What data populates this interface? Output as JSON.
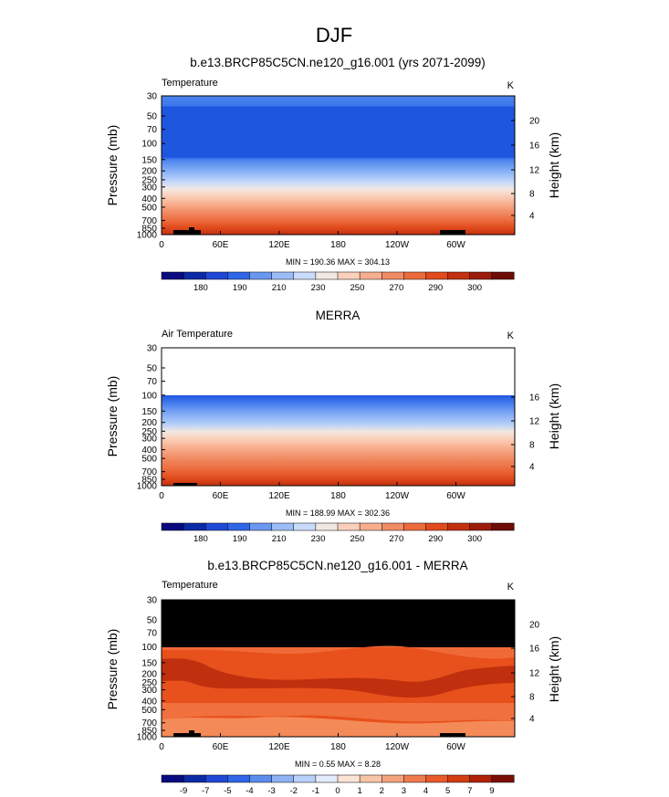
{
  "figure": {
    "title": "DJF"
  },
  "chart_data": [
    {
      "type": "heatmap",
      "title": "b.e13.BRCP85C5CN.ne120_g16.001 (yrs 2071-2099)",
      "left_label": "Temperature",
      "right_label": "K",
      "ylabel": "Pressure (mb)",
      "ylabel_right": "Height (km)",
      "stats": "MIN = 190.36  MAX = 304.13",
      "x_ticks": [
        "0",
        "60E",
        "120E",
        "180",
        "120W",
        "60W"
      ],
      "y_ticks": [
        "30",
        "50",
        "70",
        "100",
        "150",
        "200",
        "250",
        "300",
        "400",
        "500",
        "700",
        "850",
        "1000"
      ],
      "height_ticks": [
        "4",
        "8",
        "12",
        "16",
        "20"
      ],
      "ylim": [
        1000,
        30
      ],
      "colorbar": {
        "colors": [
          "#0a0a80",
          "#0d2aa6",
          "#1f48d6",
          "#2f66e8",
          "#6a98f1",
          "#9cbcf7",
          "#c9dbfb",
          "#f1e8e2",
          "#fbd0bb",
          "#f7ae8e",
          "#f18b63",
          "#ec6a3c",
          "#e04a1c",
          "#c23010",
          "#9b1c0a",
          "#6e0c06"
        ],
        "labels": [
          "180",
          "190",
          "210",
          "230",
          "250",
          "270",
          "290",
          "300"
        ]
      }
    },
    {
      "type": "heatmap",
      "title": "MERRA",
      "left_label": "Air Temperature",
      "right_label": "K",
      "ylabel": "Pressure (mb)",
      "ylabel_right": "Height (km)",
      "stats": "MIN = 188.99  MAX = 302.36",
      "x_ticks": [
        "0",
        "60E",
        "120E",
        "180",
        "120W",
        "60W"
      ],
      "y_ticks": [
        "30",
        "50",
        "70",
        "100",
        "150",
        "200",
        "250",
        "300",
        "400",
        "500",
        "700",
        "850",
        "1000"
      ],
      "height_ticks": [
        "4",
        "8",
        "12",
        "16"
      ],
      "ylim": [
        1000,
        30
      ],
      "colorbar": {
        "colors": [
          "#0a0a80",
          "#0d2aa6",
          "#1f48d6",
          "#2f66e8",
          "#6a98f1",
          "#9cbcf7",
          "#c9dbfb",
          "#f1e8e2",
          "#fbd0bb",
          "#f7ae8e",
          "#f18b63",
          "#ec6a3c",
          "#e04a1c",
          "#c23010",
          "#9b1c0a",
          "#6e0c06"
        ],
        "labels": [
          "180",
          "190",
          "210",
          "230",
          "250",
          "270",
          "290",
          "300"
        ]
      }
    },
    {
      "type": "heatmap",
      "title": "b.e13.BRCP85C5CN.ne120_g16.001 - MERRA",
      "left_label": "Temperature",
      "right_label": "K",
      "ylabel": "Pressure (mb)",
      "ylabel_right": "Height (km)",
      "stats": "MIN =   0.55  MAX =   8.28",
      "x_ticks": [
        "0",
        "60E",
        "120E",
        "180",
        "120W",
        "60W"
      ],
      "y_ticks": [
        "30",
        "50",
        "70",
        "100",
        "150",
        "200",
        "250",
        "300",
        "400",
        "500",
        "700",
        "850",
        "1000"
      ],
      "height_ticks": [
        "4",
        "8",
        "12",
        "16",
        "20"
      ],
      "ylim": [
        1000,
        30
      ],
      "colorbar": {
        "colors": [
          "#0a0a80",
          "#0d2aa6",
          "#1f48d6",
          "#2f66e8",
          "#5b8cee",
          "#8fb2f4",
          "#b9d0f9",
          "#e2ecfc",
          "#fbe3d6",
          "#f8c4a8",
          "#f4a27c",
          "#ef7c4e",
          "#e85a28",
          "#d43c12",
          "#b02208",
          "#7a0e04"
        ],
        "labels": [
          "-9",
          "-7",
          "-5",
          "-4",
          "-3",
          "-2",
          "-1",
          "0",
          "1",
          "2",
          "3",
          "4",
          "5",
          "7",
          "9"
        ]
      }
    }
  ]
}
